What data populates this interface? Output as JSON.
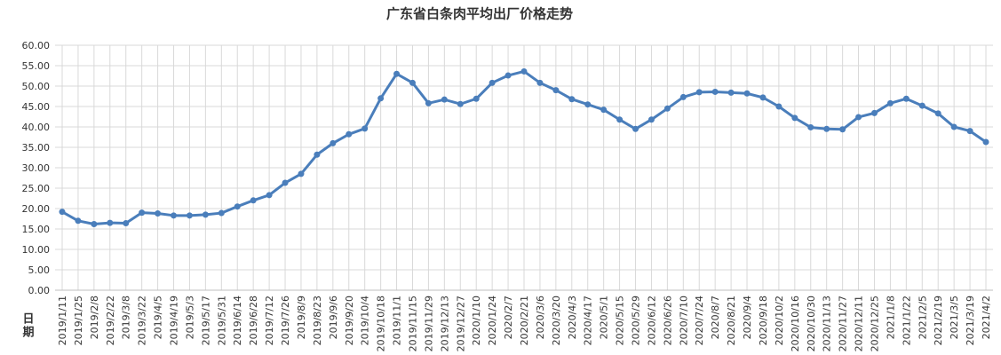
{
  "chart_data": {
    "type": "line",
    "title": "广东省白条肉平均出厂价格走势",
    "x_label": "日期",
    "categories": [
      "2019/1/11",
      "2019/1/25",
      "2019/2/8",
      "2019/2/22",
      "2019/3/8",
      "2019/3/22",
      "2019/4/5",
      "2019/4/19",
      "2019/5/3",
      "2019/5/17",
      "2019/5/31",
      "2019/6/14",
      "2019/6/28",
      "2019/7/12",
      "2019/7/26",
      "2019/8/9",
      "2019/8/23",
      "2019/9/6",
      "2019/9/20",
      "2019/10/4",
      "2019/10/18",
      "2019/11/1",
      "2019/11/15",
      "2019/11/29",
      "2019/12/13",
      "2019/12/27",
      "2020/1/10",
      "2020/1/24",
      "2020/2/7",
      "2020/2/21",
      "2020/3/6",
      "2020/3/20",
      "2020/4/3",
      "2020/4/17",
      "2020/5/1",
      "2020/5/15",
      "2020/5/29",
      "2020/6/12",
      "2020/6/26",
      "2020/7/10",
      "2020/7/24",
      "2020/8/7",
      "2020/8/21",
      "2020/9/4",
      "2020/9/18",
      "2020/10/2",
      "2020/10/16",
      "2020/10/30",
      "2020/11/13",
      "2020/11/27",
      "2020/12/11",
      "2020/12/25",
      "2021/1/8",
      "2021/1/22",
      "2021/2/5",
      "2021/2/19",
      "2021/3/5",
      "2021/3/19",
      "2021/4/2"
    ],
    "values": [
      19.2,
      17.0,
      16.2,
      16.5,
      16.4,
      19.0,
      18.8,
      18.3,
      18.3,
      18.5,
      18.9,
      20.5,
      22.0,
      23.3,
      26.3,
      28.5,
      33.2,
      36.0,
      38.2,
      39.6,
      47.0,
      53.0,
      50.8,
      45.8,
      46.7,
      45.6,
      46.9,
      50.8,
      52.6,
      53.6,
      50.8,
      49.0,
      46.8,
      45.5,
      44.2,
      41.8,
      39.5,
      41.8,
      44.5,
      47.3,
      48.5,
      48.6,
      48.4,
      48.2,
      47.2,
      45.0,
      42.2,
      39.9,
      39.5,
      39.4,
      42.4,
      43.4,
      45.8,
      46.9,
      45.2,
      43.3,
      40.0,
      39.0,
      36.3
    ],
    "color": "#4a7ebb",
    "ylim": [
      0,
      60
    ],
    "yticks": [
      {
        "value": 0,
        "label": "0.00"
      },
      {
        "value": 5,
        "label": "5.00"
      },
      {
        "value": 10,
        "label": "10.00"
      },
      {
        "value": 15,
        "label": "15.00"
      },
      {
        "value": 20,
        "label": "20.00"
      },
      {
        "value": 25,
        "label": "25.00"
      },
      {
        "value": 30,
        "label": "30.00"
      },
      {
        "value": 35,
        "label": "35.00"
      },
      {
        "value": 40,
        "label": "40.00"
      },
      {
        "value": 45,
        "label": "45.00"
      },
      {
        "value": 50,
        "label": "50.00"
      },
      {
        "value": 55,
        "label": "55.00"
      },
      {
        "value": 60,
        "label": "60.00"
      }
    ],
    "grid": true
  }
}
